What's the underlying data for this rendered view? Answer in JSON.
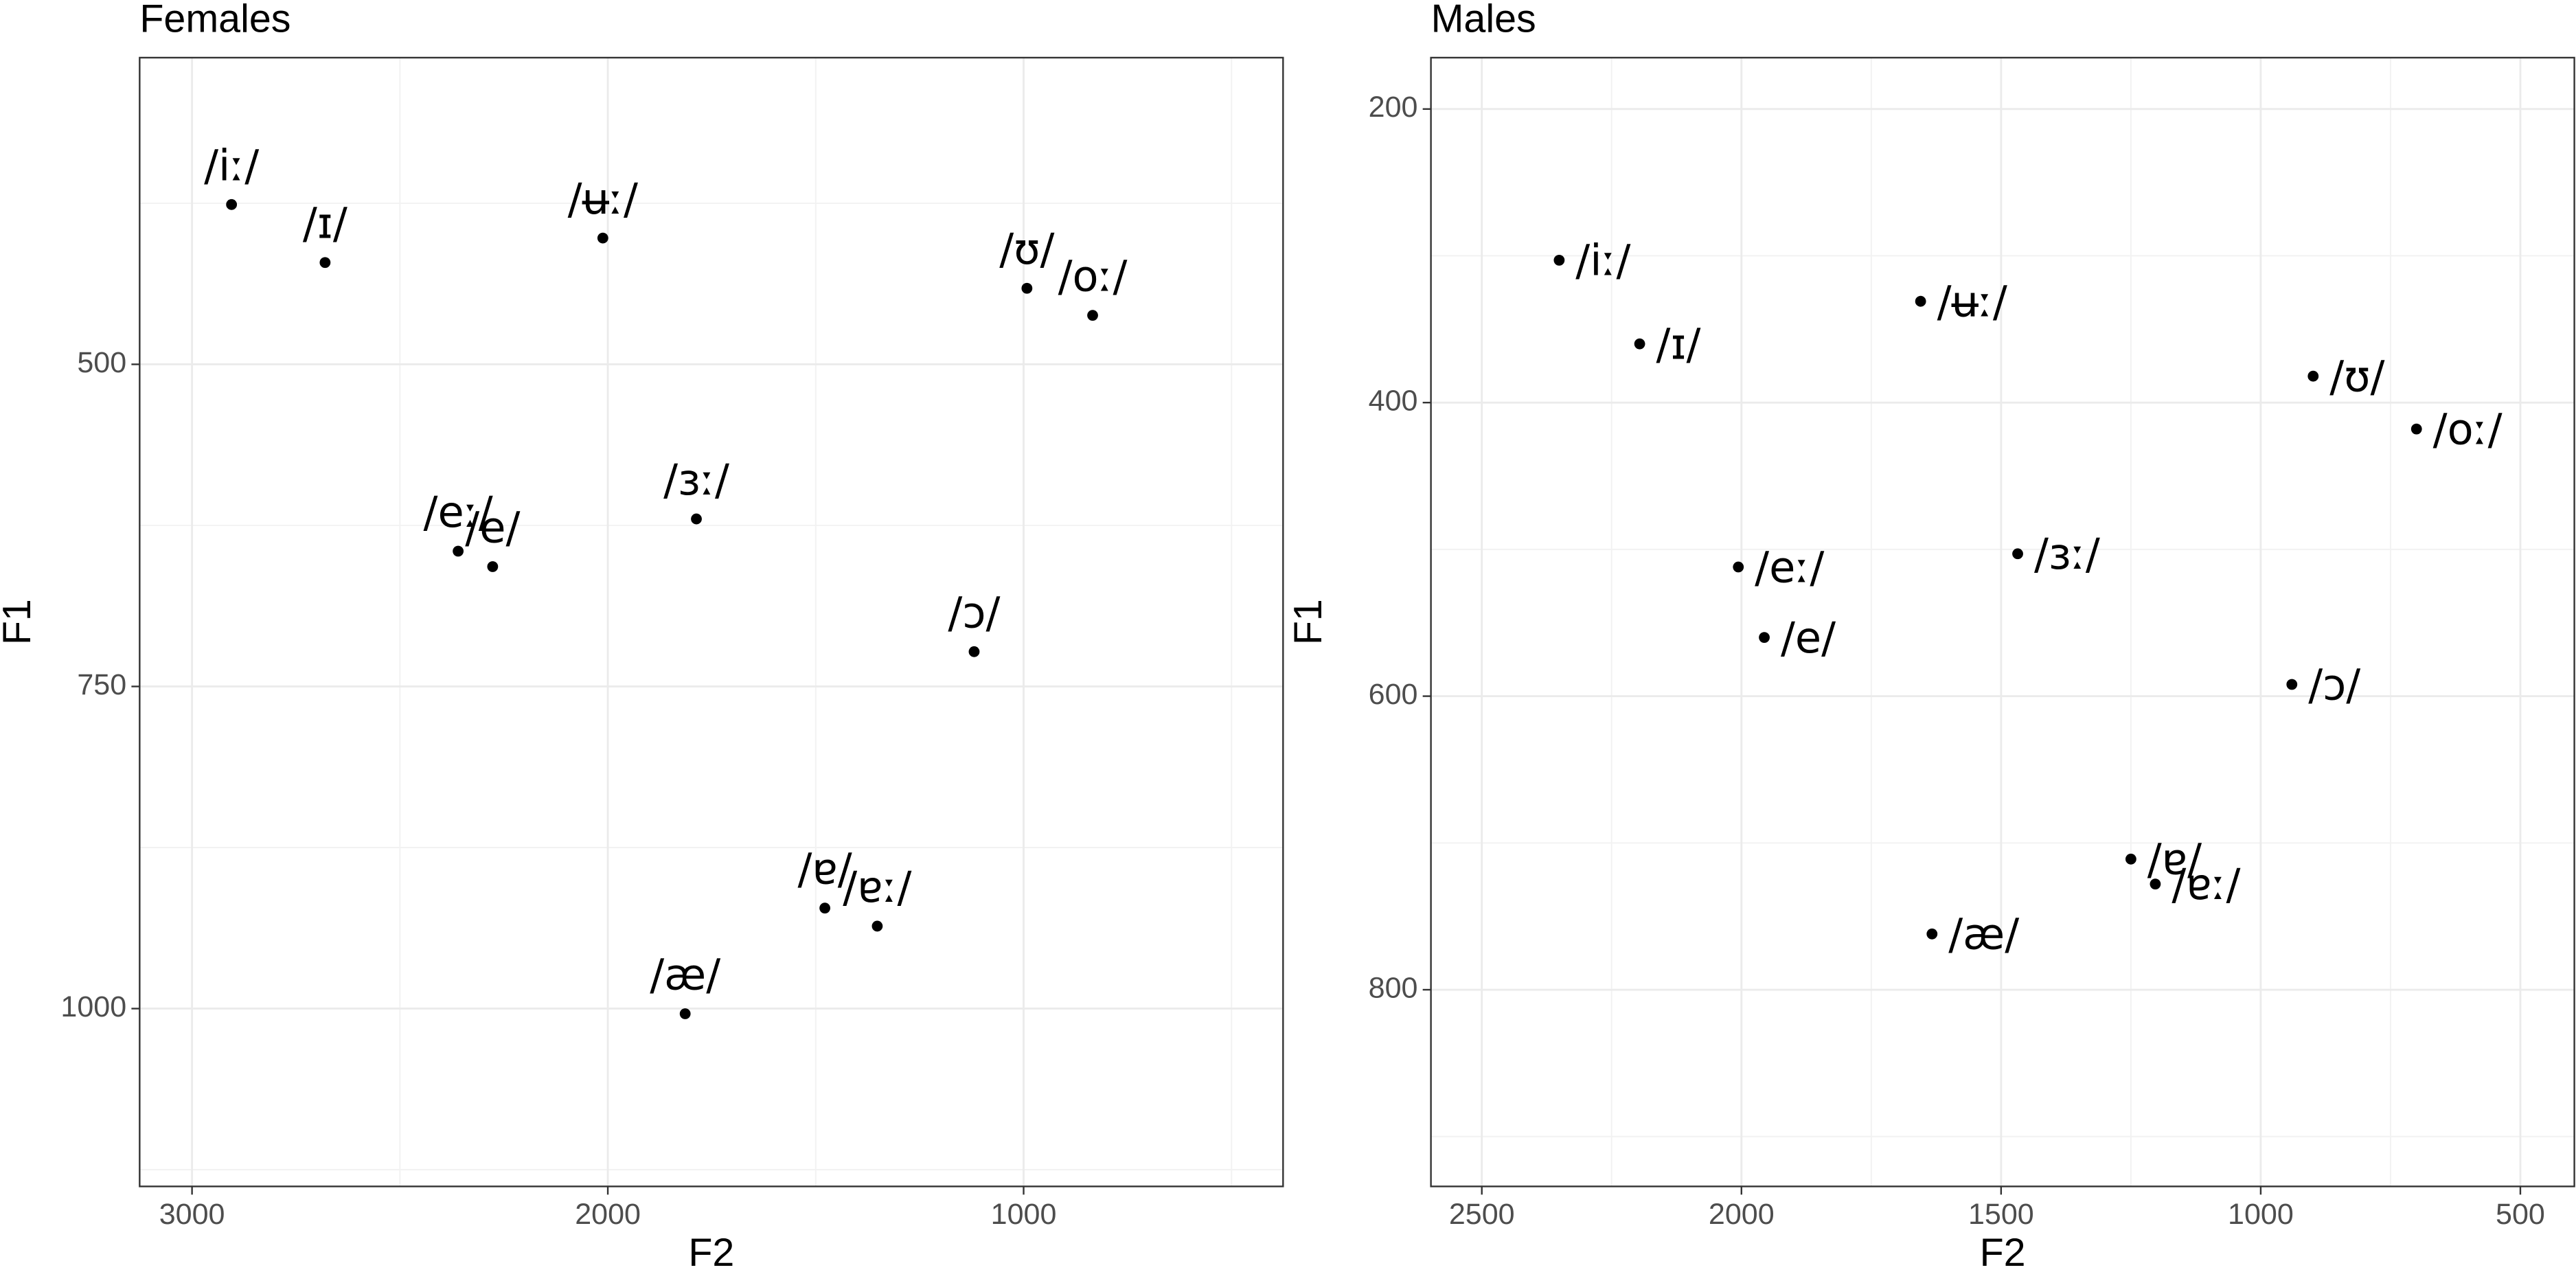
{
  "chart_data": [
    {
      "type": "scatter",
      "title": "Females",
      "x_label": "F2",
      "y_label": "F1",
      "labels": [
        "/iː/",
        "/ɪ/",
        "/ʉː/",
        "/ʊ/",
        "/oː/",
        "/eː/",
        "/e/",
        "/ɜː/",
        "/ɔ/",
        "/ɐ/",
        "/ɐː/",
        "/æ/"
      ],
      "x": [
        2905,
        2680,
        2012,
        992,
        834,
        2360,
        2277,
        1787,
        1119,
        1478,
        1352,
        1814
      ],
      "values": [
        376,
        421,
        402,
        441,
        462,
        645,
        657,
        620,
        723,
        922,
        936,
        1004
      ],
      "label_position": "above",
      "color": "#000000",
      "xlim": [
        3126,
        376
      ],
      "ylim": [
        1138,
        262
      ],
      "xticks": [
        3000,
        2000,
        1000
      ],
      "yticks": [
        500,
        750,
        1000
      ],
      "x_minor_grid": [
        2500,
        1500,
        500
      ],
      "y_minor_grid": [
        375,
        625,
        875,
        1125
      ],
      "grid": true
    },
    {
      "type": "scatter",
      "title": "Males",
      "x_label": "F2",
      "y_label": "F1",
      "labels": [
        "/iː/",
        "/ɪ/",
        "/ʉː/",
        "/ʊ/",
        "/oː/",
        "/eː/",
        "/e/",
        "/ɜː/",
        "/ɔ/",
        "/ɐ/",
        "/ɐː/",
        "/æ/"
      ],
      "x": [
        2351,
        2196,
        1655,
        899,
        700,
        2006,
        1956,
        1468,
        940,
        1250,
        1203,
        1633
      ],
      "values": [
        303,
        360,
        331,
        382,
        418,
        512,
        560,
        503,
        592,
        711,
        728,
        762
      ],
      "label_position": "right",
      "color": "#000000",
      "xlim": [
        2598,
        396
      ],
      "ylim": [
        934,
        165
      ],
      "xticks": [
        2500,
        2000,
        1500,
        1000,
        500
      ],
      "yticks": [
        200,
        400,
        600,
        800
      ],
      "x_minor_grid": [
        2250,
        1750,
        1250,
        750
      ],
      "y_minor_grid": [
        300,
        500,
        700,
        900
      ],
      "grid": true
    }
  ]
}
